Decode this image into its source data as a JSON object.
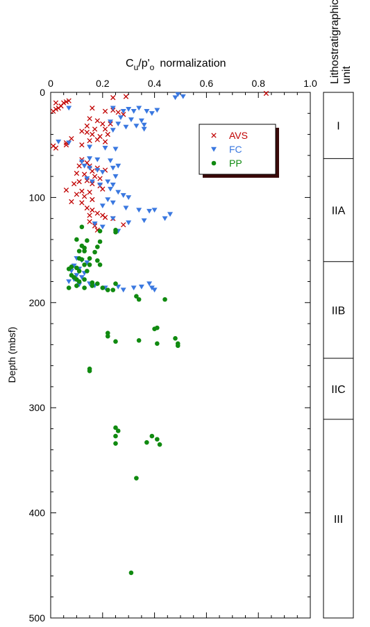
{
  "chart_data": {
    "type": "scatter",
    "title_main": "C",
    "title_sub1": "u",
    "title_mid": "/p'",
    "title_sub2": "o",
    "title_rest": "normalization",
    "xlabel": "",
    "ylabel": "Depth (mbsf)",
    "xlim": [
      0,
      1.0
    ],
    "ylim": [
      0,
      500
    ],
    "y_inverted": true,
    "x_axis_position": "top",
    "xticks": [
      "0",
      "0.2",
      "0.4",
      "0.6",
      "0.8",
      "1.0"
    ],
    "yticks": [
      "0",
      "100",
      "200",
      "300",
      "400",
      "500"
    ],
    "legend_placement": "top-right",
    "series": [
      {
        "name": "AVS",
        "marker": "x",
        "color": "#c00000",
        "points": [
          [
            0.83,
            1
          ],
          [
            0.02,
            10
          ],
          [
            0.04,
            13
          ],
          [
            0.05,
            10
          ],
          [
            0.06,
            9
          ],
          [
            0.07,
            8
          ],
          [
            0.03,
            15
          ],
          [
            0.01,
            18
          ],
          [
            0.02,
            16
          ],
          [
            0.24,
            5
          ],
          [
            0.29,
            4
          ],
          [
            0.16,
            15
          ],
          [
            0.21,
            18
          ],
          [
            0.24,
            17
          ],
          [
            0.26,
            19
          ],
          [
            0.28,
            21
          ],
          [
            0.15,
            25
          ],
          [
            0.18,
            27
          ],
          [
            0.2,
            30
          ],
          [
            0.23,
            30
          ],
          [
            0.14,
            32
          ],
          [
            0.17,
            35
          ],
          [
            0.21,
            35
          ],
          [
            0.12,
            37
          ],
          [
            0.14,
            38
          ],
          [
            0.16,
            40
          ],
          [
            0.19,
            42
          ],
          [
            0.22,
            40
          ],
          [
            0.08,
            44
          ],
          [
            0.15,
            46
          ],
          [
            0.18,
            45
          ],
          [
            0.21,
            47
          ],
          [
            0.12,
            50
          ],
          [
            0.06,
            48
          ],
          [
            0.02,
            53
          ],
          [
            0.01,
            51
          ],
          [
            0.06,
            50
          ],
          [
            0.12,
            64
          ],
          [
            0.14,
            67
          ],
          [
            0.11,
            70
          ],
          [
            0.15,
            70
          ],
          [
            0.18,
            72
          ],
          [
            0.16,
            75
          ],
          [
            0.21,
            74
          ],
          [
            0.1,
            77
          ],
          [
            0.13,
            78
          ],
          [
            0.17,
            80
          ],
          [
            0.19,
            82
          ],
          [
            0.14,
            84
          ],
          [
            0.11,
            85
          ],
          [
            0.09,
            87
          ],
          [
            0.16,
            87
          ],
          [
            0.19,
            89
          ],
          [
            0.2,
            92
          ],
          [
            0.06,
            93
          ],
          [
            0.12,
            94
          ],
          [
            0.15,
            95
          ],
          [
            0.1,
            97
          ],
          [
            0.13,
            99
          ],
          [
            0.08,
            104
          ],
          [
            0.12,
            105
          ],
          [
            0.16,
            102
          ],
          [
            0.14,
            110
          ],
          [
            0.16,
            112
          ],
          [
            0.15,
            117
          ],
          [
            0.18,
            115
          ],
          [
            0.2,
            117
          ],
          [
            0.21,
            119
          ],
          [
            0.24,
            120
          ],
          [
            0.28,
            126
          ],
          [
            0.17,
            127
          ],
          [
            0.18,
            131
          ],
          [
            0.15,
            123
          ]
        ]
      },
      {
        "name": "FC",
        "marker": "triangle-down",
        "color": "#3a78e0",
        "points": [
          [
            0.49,
            2
          ],
          [
            0.51,
            4
          ],
          [
            0.48,
            5
          ],
          [
            0.07,
            15
          ],
          [
            0.24,
            15
          ],
          [
            0.3,
            16
          ],
          [
            0.28,
            18
          ],
          [
            0.32,
            18
          ],
          [
            0.34,
            15
          ],
          [
            0.37,
            18
          ],
          [
            0.39,
            20
          ],
          [
            0.41,
            17
          ],
          [
            0.27,
            24
          ],
          [
            0.31,
            26
          ],
          [
            0.35,
            27
          ],
          [
            0.23,
            28
          ],
          [
            0.26,
            30
          ],
          [
            0.29,
            33
          ],
          [
            0.33,
            32
          ],
          [
            0.36,
            31
          ],
          [
            0.36,
            35
          ],
          [
            0.24,
            36
          ],
          [
            0.03,
            47
          ],
          [
            0.07,
            48
          ],
          [
            0.15,
            52
          ],
          [
            0.21,
            53
          ],
          [
            0.25,
            54
          ],
          [
            0.15,
            63
          ],
          [
            0.12,
            66
          ],
          [
            0.18,
            64
          ],
          [
            0.23,
            65
          ],
          [
            0.13,
            70
          ],
          [
            0.15,
            72
          ],
          [
            0.18,
            74
          ],
          [
            0.2,
            76
          ],
          [
            0.24,
            72
          ],
          [
            0.26,
            70
          ],
          [
            0.25,
            80
          ],
          [
            0.14,
            82
          ],
          [
            0.16,
            85
          ],
          [
            0.19,
            88
          ],
          [
            0.22,
            85
          ],
          [
            0.24,
            88
          ],
          [
            0.23,
            92
          ],
          [
            0.26,
            95
          ],
          [
            0.28,
            98
          ],
          [
            0.3,
            100
          ],
          [
            0.22,
            102
          ],
          [
            0.24,
            105
          ],
          [
            0.2,
            108
          ],
          [
            0.29,
            110
          ],
          [
            0.34,
            112
          ],
          [
            0.38,
            113
          ],
          [
            0.4,
            112
          ],
          [
            0.46,
            116
          ],
          [
            0.44,
            120
          ],
          [
            0.36,
            122
          ],
          [
            0.3,
            124
          ],
          [
            0.24,
            120
          ],
          [
            0.17,
            125
          ],
          [
            0.2,
            128
          ],
          [
            0.26,
            132
          ],
          [
            0.1,
            158
          ],
          [
            0.12,
            160
          ],
          [
            0.14,
            162
          ],
          [
            0.09,
            165
          ],
          [
            0.11,
            168
          ],
          [
            0.08,
            170
          ],
          [
            0.13,
            172
          ],
          [
            0.1,
            174
          ],
          [
            0.12,
            176
          ],
          [
            0.09,
            178
          ],
          [
            0.07,
            180
          ],
          [
            0.11,
            183
          ],
          [
            0.15,
            182
          ],
          [
            0.17,
            184
          ],
          [
            0.21,
            186
          ],
          [
            0.26,
            185
          ],
          [
            0.28,
            188
          ],
          [
            0.32,
            186
          ],
          [
            0.35,
            185
          ],
          [
            0.38,
            182
          ],
          [
            0.39,
            186
          ],
          [
            0.4,
            188
          ]
        ]
      },
      {
        "name": "PP",
        "marker": "circle",
        "color": "#108a10",
        "points": [
          [
            0.12,
            128
          ],
          [
            0.19,
            132
          ],
          [
            0.25,
            133
          ],
          [
            0.25,
            131
          ],
          [
            0.1,
            140
          ],
          [
            0.14,
            141
          ],
          [
            0.19,
            142
          ],
          [
            0.12,
            146
          ],
          [
            0.13,
            148
          ],
          [
            0.18,
            147
          ],
          [
            0.11,
            151
          ],
          [
            0.13,
            151
          ],
          [
            0.17,
            152
          ],
          [
            0.11,
            158
          ],
          [
            0.12,
            159
          ],
          [
            0.15,
            158
          ],
          [
            0.08,
            166
          ],
          [
            0.1,
            167
          ],
          [
            0.13,
            164
          ],
          [
            0.15,
            164
          ],
          [
            0.18,
            160
          ],
          [
            0.19,
            164
          ],
          [
            0.07,
            168
          ],
          [
            0.11,
            170
          ],
          [
            0.14,
            170
          ],
          [
            0.08,
            174
          ],
          [
            0.09,
            176
          ],
          [
            0.1,
            178
          ],
          [
            0.11,
            180
          ],
          [
            0.13,
            178
          ],
          [
            0.16,
            181
          ],
          [
            0.18,
            182
          ],
          [
            0.16,
            184
          ],
          [
            0.07,
            186
          ],
          [
            0.1,
            184
          ],
          [
            0.13,
            186
          ],
          [
            0.2,
            186
          ],
          [
            0.22,
            188
          ],
          [
            0.24,
            188
          ],
          [
            0.25,
            182
          ],
          [
            0.33,
            194
          ],
          [
            0.34,
            197
          ],
          [
            0.44,
            197
          ],
          [
            0.4,
            225
          ],
          [
            0.41,
            224
          ],
          [
            0.22,
            229
          ],
          [
            0.22,
            232
          ],
          [
            0.25,
            237
          ],
          [
            0.34,
            236
          ],
          [
            0.41,
            239
          ],
          [
            0.48,
            234
          ],
          [
            0.49,
            239
          ],
          [
            0.49,
            241
          ],
          [
            0.15,
            263
          ],
          [
            0.15,
            265
          ],
          [
            0.25,
            319
          ],
          [
            0.26,
            322
          ],
          [
            0.25,
            327
          ],
          [
            0.25,
            334
          ],
          [
            0.39,
            327
          ],
          [
            0.37,
            333
          ],
          [
            0.41,
            330
          ],
          [
            0.42,
            335
          ],
          [
            0.33,
            367
          ],
          [
            0.31,
            457
          ]
        ]
      }
    ]
  },
  "units_panel": {
    "header_line1": "Lithostratigraphic",
    "header_line2": "unit",
    "units": [
      {
        "label": "I",
        "top": 0,
        "bottom": 63
      },
      {
        "label": "IIA",
        "top": 63,
        "bottom": 161
      },
      {
        "label": "IIB",
        "top": 161,
        "bottom": 253
      },
      {
        "label": "IIC",
        "top": 253,
        "bottom": 311
      },
      {
        "label": "III",
        "top": 311,
        "bottom": 500
      }
    ]
  },
  "legend": {
    "items": [
      {
        "label": "AVS",
        "color": "#c00000",
        "marker": "x"
      },
      {
        "label": "FC",
        "color": "#3a78e0",
        "marker": "triangle-down"
      },
      {
        "label": "PP",
        "color": "#108a10",
        "marker": "circle"
      }
    ]
  }
}
